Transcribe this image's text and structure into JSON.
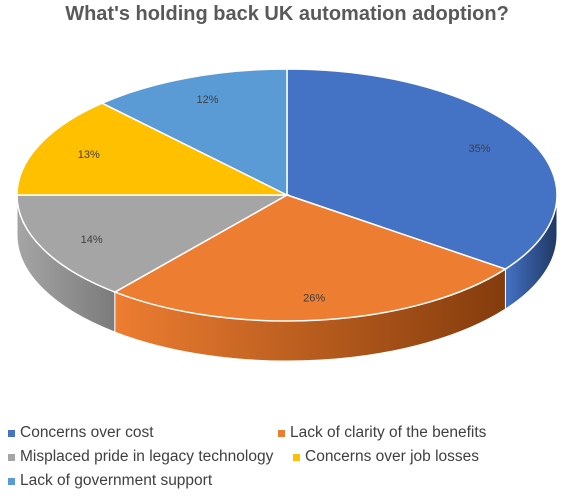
{
  "chart_data": {
    "type": "pie",
    "title": "What's holding back UK automation adoption?",
    "categories": [
      "Concerns over cost",
      "Lack of clarity of the benefits",
      "Misplaced pride in legacy technology",
      "Concerns over job losses",
      "Lack of government support"
    ],
    "values": [
      35,
      26,
      14,
      13,
      12
    ],
    "labels": [
      "35%",
      "26%",
      "14%",
      "13%",
      "12%"
    ],
    "colors": [
      "#4472C4",
      "#ED7D31",
      "#A5A5A5",
      "#FFC000",
      "#5B9BD5"
    ],
    "side_colors": [
      "#1F3864",
      "#843C0C",
      "#7B7B7B",
      "#BF9000",
      "#2E75B6"
    ],
    "legend_position": "bottom",
    "style": "3d-pie"
  }
}
